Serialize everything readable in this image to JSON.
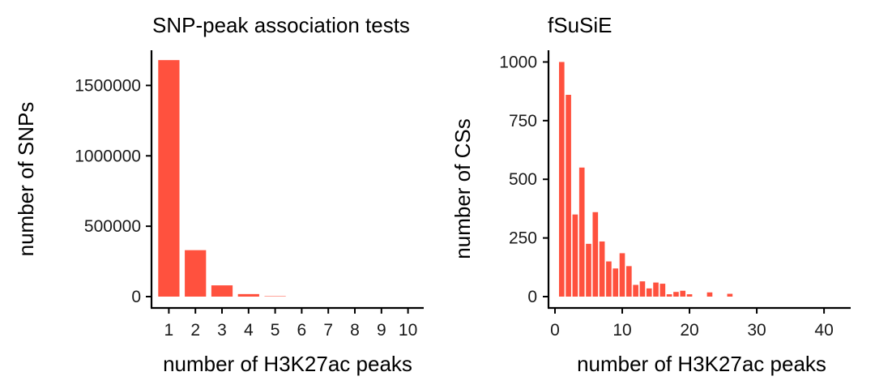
{
  "colors": {
    "bar": "#FF513E",
    "axis": "#000000"
  },
  "chart_data": [
    {
      "type": "bar",
      "title": "SNP-peak association tests",
      "xlabel": "number of H3K27ac peaks",
      "ylabel": "number of SNPs",
      "categories": [
        "1",
        "2",
        "3",
        "4",
        "5",
        "6",
        "7",
        "8",
        "9",
        "10"
      ],
      "values": [
        1680000,
        330000,
        80000,
        18000,
        3000,
        800,
        300,
        100,
        50,
        20
      ],
      "ylim": [
        0,
        1750000
      ],
      "yticks": [
        0,
        500000,
        1000000,
        1500000
      ],
      "ytick_labels": [
        "0",
        "500000",
        "1000000",
        "1500000"
      ],
      "grid": false
    },
    {
      "type": "bar",
      "title": "fSuSiE",
      "xlabel": "number of H3K27ac peaks",
      "ylabel": "number of CSs",
      "x": [
        1,
        2,
        3,
        4,
        5,
        6,
        7,
        8,
        9,
        10,
        11,
        12,
        13,
        14,
        15,
        16,
        17,
        18,
        19,
        20,
        21,
        22,
        23,
        24,
        25,
        26,
        27,
        28,
        29,
        30,
        31,
        32,
        33,
        34,
        35,
        36,
        37,
        38,
        39,
        40
      ],
      "values": [
        1000,
        860,
        350,
        550,
        225,
        360,
        235,
        150,
        120,
        185,
        130,
        50,
        65,
        35,
        60,
        55,
        10,
        20,
        25,
        10,
        0,
        0,
        18,
        0,
        0,
        12,
        0,
        0,
        0,
        0,
        0,
        0,
        0,
        0,
        0,
        0,
        0,
        0,
        0,
        0
      ],
      "xlim": [
        0,
        43
      ],
      "ylim": [
        0,
        1050
      ],
      "xticks": [
        0,
        10,
        20,
        30,
        40
      ],
      "xtick_labels": [
        "0",
        "10",
        "20",
        "30",
        "40"
      ],
      "yticks": [
        0,
        250,
        500,
        750,
        1000
      ],
      "ytick_labels": [
        "0",
        "250",
        "500",
        "750",
        "1000"
      ],
      "grid": false
    }
  ]
}
